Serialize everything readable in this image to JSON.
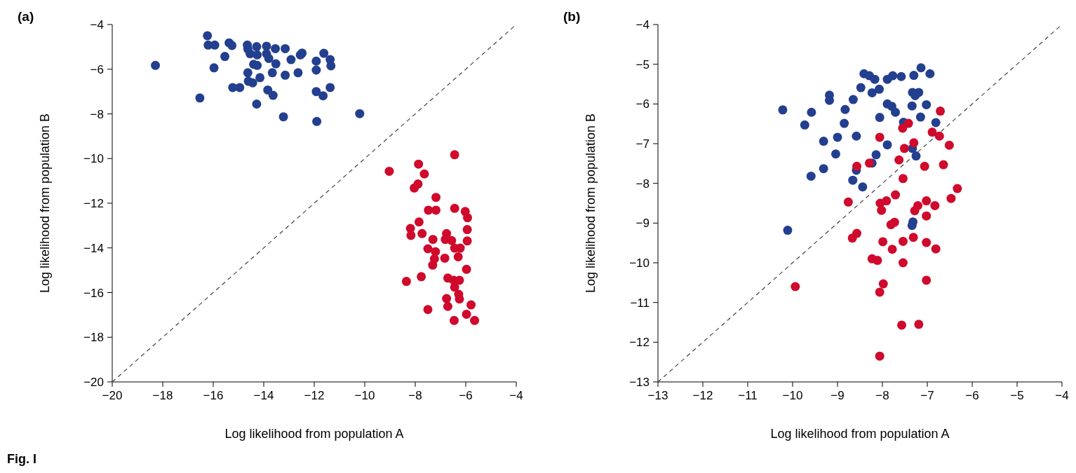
{
  "chart_data": [
    {
      "type": "scatter",
      "title": "(a)",
      "xlabel": "Log likelihood from population A",
      "ylabel": "Log likelihood from population B",
      "xlim": [
        -20,
        -4
      ],
      "ylim": [
        -20,
        -4
      ],
      "xticks": [
        -20,
        -18,
        -16,
        -14,
        -12,
        -10,
        -8,
        -6,
        -4
      ],
      "yticks": [
        -20,
        -18,
        -16,
        -14,
        -12,
        -10,
        -8,
        -6,
        -4
      ],
      "grid": false,
      "marker": "circle",
      "annotations": [
        "Fig. I"
      ],
      "series": [
        {
          "type": "line",
          "color": "#444444",
          "line_style": "dashed",
          "marker": "none",
          "x": [
            -20,
            -4
          ],
          "values": [
            -20,
            -4
          ]
        },
        {
          "color": "#233f8f",
          "x": [
            -18.29,
            -16.23,
            -16.2,
            -15.94,
            -15.97,
            -15.54,
            -15.37,
            -15.26,
            -15.23,
            -14.95,
            -16.53,
            -14.65,
            -14.63,
            -14.54,
            -14.28,
            -14.26,
            -13.89,
            -13.89,
            -13.8,
            -13.54,
            -13.15,
            -13.52,
            -14.4,
            -14.26,
            -12.92,
            -12.55,
            -12.48,
            -14.63,
            -14.15,
            -13.66,
            -13.15,
            -12.64,
            -14.61,
            -14.44,
            -13.84,
            -13.63,
            -14.28,
            -13.22,
            -11.9,
            -10.2,
            -11.62,
            -11.92,
            -11.92,
            -11.37,
            -11.34,
            -11.37,
            -11.92,
            -11.65
          ],
          "values": [
            -5.83,
            -4.5,
            -4.92,
            -4.92,
            -5.94,
            -5.43,
            -4.82,
            -4.94,
            -6.82,
            -6.82,
            -7.29,
            -4.92,
            -5.1,
            -5.31,
            -4.99,
            -5.36,
            -4.97,
            -5.31,
            -5.52,
            -5.08,
            -5.08,
            -5.76,
            -5.78,
            -5.83,
            -5.57,
            -5.36,
            -5.28,
            -6.16,
            -6.38,
            -6.16,
            -6.27,
            -6.16,
            -6.54,
            -6.61,
            -6.93,
            -7.17,
            -7.56,
            -8.13,
            -8.34,
            -7.99,
            -5.29,
            -5.64,
            -6.04,
            -5.57,
            -5.85,
            -6.82,
            -7.0,
            -7.19
          ]
        },
        {
          "color": "#cf0a2c",
          "x": [
            -6.44,
            -7.87,
            -9.03,
            -7.64,
            -7.89,
            -8.04,
            -7.18,
            -7.48,
            -7.18,
            -6.44,
            -6.02,
            -5.93,
            -7.85,
            -8.19,
            -8.17,
            -7.73,
            -5.94,
            -7.3,
            -6.76,
            -6.81,
            -6.56,
            -5.94,
            -6.44,
            -6.22,
            -7.5,
            -7.2,
            -6.3,
            -7.24,
            -6.83,
            -7.31,
            -5.97,
            -8.35,
            -7.76,
            -6.71,
            -6.48,
            -6.25,
            -6.44,
            -6.28,
            -6.25,
            -6.76,
            -6.71,
            -5.79,
            -7.5,
            -5.97,
            -6.46,
            -5.65
          ],
          "values": [
            -9.83,
            -10.25,
            -10.57,
            -10.69,
            -11.14,
            -11.32,
            -11.74,
            -12.31,
            -12.31,
            -12.23,
            -12.37,
            -12.65,
            -12.84,
            -13.13,
            -13.44,
            -13.36,
            -13.18,
            -13.62,
            -13.36,
            -13.62,
            -13.67,
            -13.69,
            -14.01,
            -14.01,
            -14.04,
            -14.17,
            -14.4,
            -14.49,
            -14.46,
            -14.77,
            -14.96,
            -15.5,
            -15.29,
            -15.35,
            -15.45,
            -15.45,
            -15.76,
            -16.08,
            -16.29,
            -16.27,
            -16.62,
            -16.55,
            -16.76,
            -16.97,
            -17.25,
            -17.25
          ]
        }
      ]
    },
    {
      "type": "scatter",
      "title": "(b)",
      "xlabel": "Log likelihood from population A",
      "ylabel": "Log likelihood from population B",
      "xlim": [
        -13,
        -4
      ],
      "ylim": [
        -13,
        -4
      ],
      "xticks": [
        -13,
        -12,
        -11,
        -10,
        -9,
        -8,
        -7,
        -6,
        -5,
        -4
      ],
      "yticks": [
        -13,
        -12,
        -11,
        -10,
        -9,
        -8,
        -7,
        -6,
        -5,
        -4
      ],
      "grid": false,
      "marker": "circle",
      "series": [
        {
          "type": "line",
          "color": "#444444",
          "line_style": "dashed",
          "marker": "none",
          "x": [
            -13,
            -4
          ],
          "values": [
            -13,
            -4
          ]
        },
        {
          "color": "#233f8f",
          "x": [
            -8.41,
            -8.29,
            -8.17,
            -7.89,
            -7.77,
            -7.58,
            -7.3,
            -7.14,
            -6.94,
            -8.48,
            -8.23,
            -8.07,
            -7.33,
            -7.19,
            -7.27,
            -9.18,
            -9.18,
            -8.65,
            -10.22,
            -9.58,
            -8.83,
            -7.89,
            -7.79,
            -7.71,
            -7.34,
            -7.02,
            -9.73,
            -8.85,
            -8.06,
            -7.15,
            -7.53,
            -6.81,
            -9.31,
            -9.0,
            -8.58,
            -7.89,
            -9.04,
            -8.14,
            -7.33,
            -7.25,
            -9.31,
            -9.59,
            -8.23,
            -8.58,
            -8.66,
            -8.44,
            -10.11,
            -7.32,
            -7.34
          ],
          "values": [
            -5.24,
            -5.29,
            -5.38,
            -5.38,
            -5.29,
            -5.31,
            -5.28,
            -5.09,
            -5.24,
            -5.59,
            -5.72,
            -5.63,
            -5.71,
            -5.71,
            -5.79,
            -5.78,
            -5.91,
            -5.89,
            -6.15,
            -6.21,
            -6.14,
            -6.0,
            -6.06,
            -6.21,
            -6.05,
            -6.02,
            -6.53,
            -6.49,
            -6.34,
            -6.33,
            -6.46,
            -6.47,
            -6.94,
            -6.84,
            -6.81,
            -7.03,
            -7.26,
            -7.28,
            -7.12,
            -7.31,
            -7.63,
            -7.82,
            -7.49,
            -7.67,
            -7.92,
            -8.09,
            -9.18,
            -8.97,
            -9.06
          ]
        },
        {
          "color": "#cf0a2c",
          "x": [
            -6.71,
            -7.42,
            -7.55,
            -8.06,
            -6.89,
            -6.73,
            -6.51,
            -7.3,
            -7.51,
            -8.29,
            -8.57,
            -7.63,
            -7.06,
            -6.64,
            -7.54,
            -7.71,
            -8.76,
            -8.05,
            -7.91,
            -8.02,
            -7.02,
            -6.83,
            -7.21,
            -7.28,
            -7.02,
            -7.73,
            -7.81,
            -6.33,
            -6.47,
            -8.67,
            -8.57,
            -7.99,
            -7.78,
            -7.54,
            -7.31,
            -7.02,
            -6.81,
            -8.23,
            -8.11,
            -7.54,
            -7.02,
            -9.94,
            -7.98,
            -8.06,
            -7.57,
            -7.19,
            -8.06
          ],
          "values": [
            -6.18,
            -6.49,
            -6.61,
            -6.84,
            -6.71,
            -6.81,
            -7.04,
            -6.98,
            -7.12,
            -7.49,
            -7.57,
            -7.41,
            -7.57,
            -7.53,
            -7.88,
            -8.29,
            -8.47,
            -8.5,
            -8.44,
            -8.68,
            -8.44,
            -8.56,
            -8.56,
            -8.69,
            -8.82,
            -8.98,
            -9.04,
            -8.13,
            -8.38,
            -9.38,
            -9.26,
            -9.47,
            -9.66,
            -9.46,
            -9.36,
            -9.49,
            -9.65,
            -9.9,
            -9.94,
            -10.0,
            -10.44,
            -10.6,
            -10.53,
            -10.74,
            -11.57,
            -11.55,
            -12.35
          ]
        }
      ]
    }
  ]
}
